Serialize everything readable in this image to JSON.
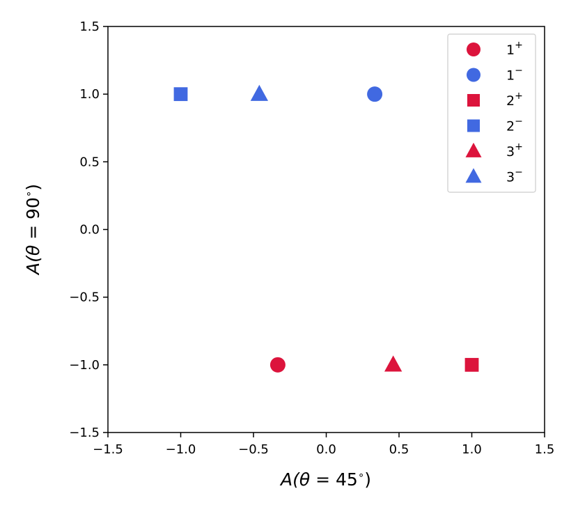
{
  "chart_data": {
    "type": "scatter",
    "title": "",
    "xlabel_prefix": "A(",
    "xlabel_theta": "θ",
    "xlabel_eq": " = ",
    "xlabel_value": "45",
    "xlabel_deg": "∘",
    "xlabel_suffix": ")",
    "ylabel_prefix": "A(",
    "ylabel_theta": "θ",
    "ylabel_eq": " = ",
    "ylabel_value": "90",
    "ylabel_deg": "∘",
    "ylabel_suffix": ")",
    "xlim": [
      -1.5,
      1.5
    ],
    "ylim": [
      -1.5,
      1.5
    ],
    "xticks": [
      -1.5,
      -1.0,
      -0.5,
      0.0,
      0.5,
      1.0,
      1.5
    ],
    "yticks": [
      -1.5,
      -1.0,
      -0.5,
      0.0,
      0.5,
      1.0,
      1.5
    ],
    "xtick_labels": [
      "−1.5",
      "−1.0",
      "−0.5",
      "0.0",
      "0.5",
      "1.0",
      "1.5"
    ],
    "ytick_labels": [
      "−1.5",
      "−1.0",
      "−0.5",
      "0.0",
      "0.5",
      "1.0",
      "1.5"
    ],
    "grid": false,
    "legend_position": "top-right",
    "series": [
      {
        "name": "1",
        "sup": "+",
        "marker": "circle",
        "color": "#dc143c",
        "x": [
          -0.333
        ],
        "y": [
          -1.0
        ]
      },
      {
        "name": "1",
        "sup": "−",
        "marker": "circle",
        "color": "#4169e1",
        "x": [
          0.333
        ],
        "y": [
          1.0
        ]
      },
      {
        "name": "2",
        "sup": "+",
        "marker": "square",
        "color": "#dc143c",
        "x": [
          1.0
        ],
        "y": [
          -1.0
        ]
      },
      {
        "name": "2",
        "sup": "−",
        "marker": "square",
        "color": "#4169e1",
        "x": [
          -1.0
        ],
        "y": [
          1.0
        ]
      },
      {
        "name": "3",
        "sup": "+",
        "marker": "triangle",
        "color": "#dc143c",
        "x": [
          0.46
        ],
        "y": [
          -1.0
        ]
      },
      {
        "name": "3",
        "sup": "−",
        "marker": "triangle",
        "color": "#4169e1",
        "x": [
          -0.46
        ],
        "y": [
          1.0
        ]
      }
    ]
  }
}
